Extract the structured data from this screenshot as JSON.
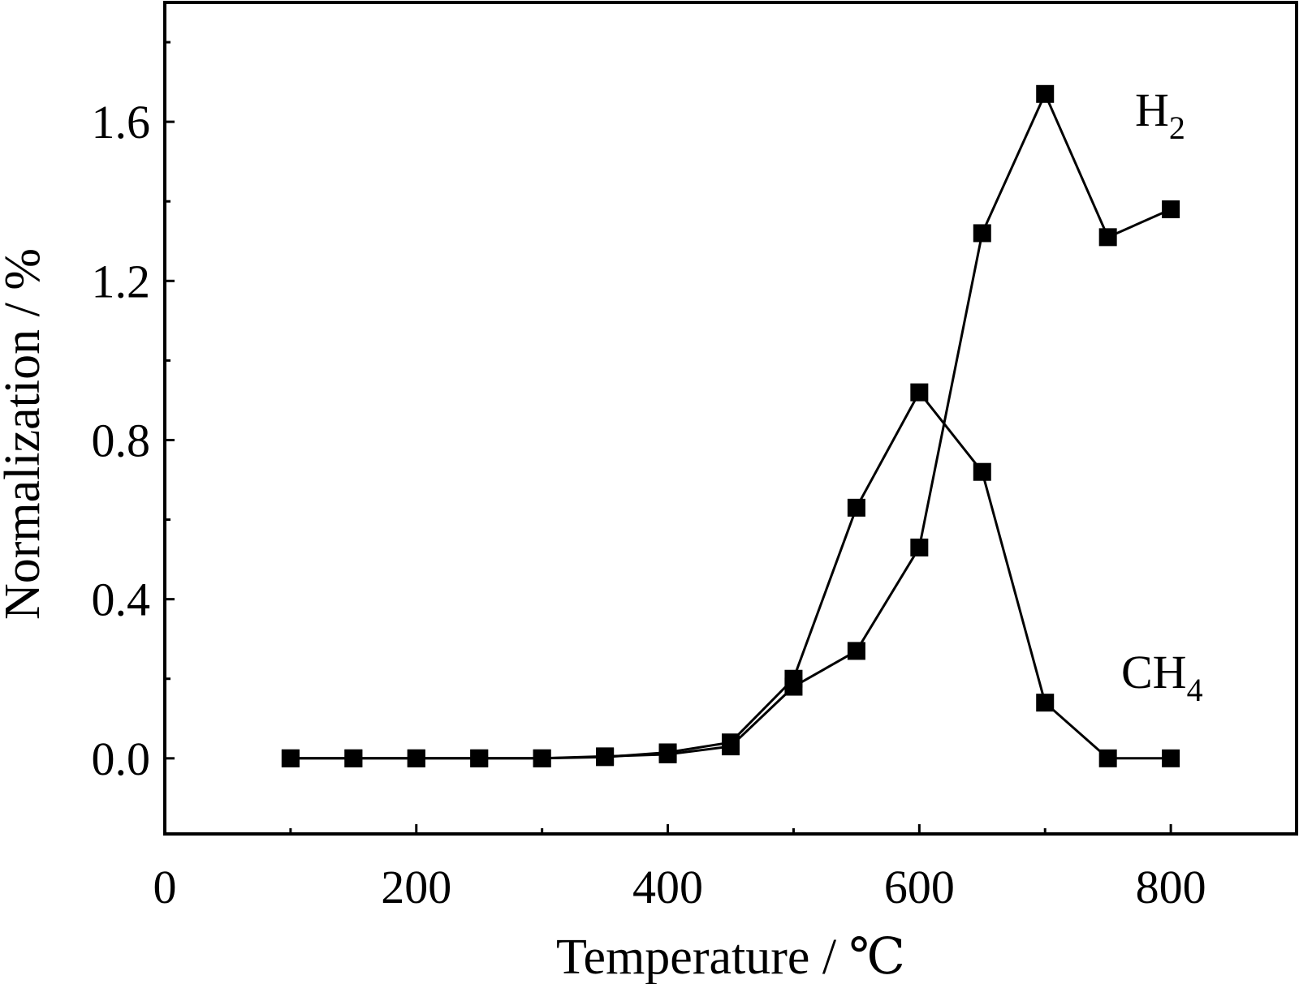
{
  "chart_data": {
    "type": "line",
    "xlabel": "Temperature / ℃",
    "ylabel": "Normalization / %",
    "xlim": [
      0,
      900
    ],
    "ylim": [
      -0.19,
      1.9
    ],
    "xticks": [
      0,
      200,
      400,
      600,
      800
    ],
    "xtick_labels": [
      "0",
      "200",
      "400",
      "600",
      "800"
    ],
    "yticks": [
      0.0,
      0.4,
      0.8,
      1.2,
      1.6
    ],
    "ytick_labels": [
      "0.0",
      "0.4",
      "0.8",
      "1.2",
      "1.6"
    ],
    "grid": false,
    "marker": "square",
    "series": [
      {
        "name": "H2",
        "label_main": "H",
        "label_sub": "2",
        "color": "#000000",
        "x": [
          100,
          150,
          200,
          250,
          300,
          350,
          400,
          450,
          500,
          550,
          600,
          650,
          700,
          750,
          800
        ],
        "y": [
          0.0,
          0.0,
          0.0,
          0.0,
          0.0,
          0.005,
          0.01,
          0.03,
          0.18,
          0.27,
          0.53,
          1.32,
          1.67,
          1.31,
          1.38
        ]
      },
      {
        "name": "CH4",
        "label_main": "CH",
        "label_sub": "4",
        "color": "#000000",
        "x": [
          100,
          150,
          200,
          250,
          300,
          350,
          400,
          450,
          500,
          550,
          600,
          650,
          700,
          750,
          800
        ],
        "y": [
          0.0,
          0.0,
          0.0,
          0.0,
          0.0,
          0.003,
          0.015,
          0.04,
          0.2,
          0.63,
          0.92,
          0.72,
          0.14,
          0.0,
          0.0
        ]
      }
    ]
  }
}
